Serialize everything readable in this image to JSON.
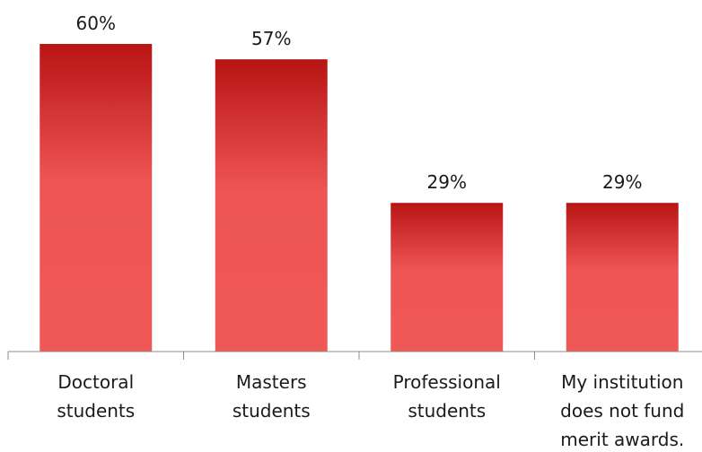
{
  "chart_data": {
    "type": "bar",
    "categories": [
      [
        "Doctoral",
        "students"
      ],
      [
        "Masters",
        "students"
      ],
      [
        "Professional",
        "students"
      ],
      [
        "My institution",
        "does not fund",
        "merit awards."
      ]
    ],
    "series": [
      {
        "values": [
          60,
          57,
          29,
          29
        ],
        "value_labels": [
          "60%",
          "57%",
          "29%",
          "29%"
        ]
      }
    ],
    "ylim": [
      0,
      64
    ],
    "grid": false,
    "legend": "none",
    "colors": {
      "bar_top": "#b81414",
      "bar_mid": "#ef5555",
      "bar_bottom": "#f05858",
      "axis": "#8c8c8c",
      "text": "#1a1a1a"
    }
  }
}
